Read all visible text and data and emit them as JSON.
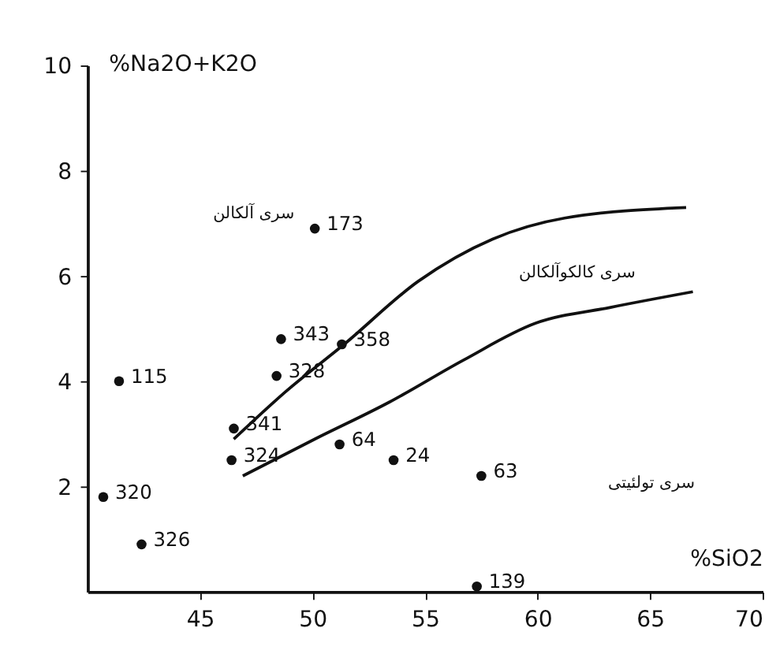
{
  "chart_data": {
    "type": "scatter",
    "xlabel": "%SiO2",
    "ylabel": "%Na2O+K2O",
    "xlim": [
      40,
      70
    ],
    "ylim": [
      0,
      10
    ],
    "xticks": [
      45,
      50,
      55,
      60,
      65,
      70
    ],
    "yticks": [
      2,
      4,
      6,
      8,
      10
    ],
    "grid": false,
    "series": [
      {
        "color": "#111111",
        "marker": "circle",
        "x": [
          50.1,
          48.6,
          51.3,
          48.4,
          41.4,
          46.5,
          46.4,
          51.2,
          53.6,
          57.5,
          40.7,
          42.4,
          57.3
        ],
        "values": [
          6.9,
          4.8,
          4.7,
          4.1,
          4.0,
          3.1,
          2.5,
          2.8,
          2.5,
          2.2,
          1.8,
          0.9,
          0.1
        ]
      },
      {
        "type": "line",
        "color": "#111111",
        "line_style": "solid",
        "x": [
          46.5,
          48.8,
          51.4,
          54.7,
          58.0,
          61.2,
          66.6
        ],
        "values": [
          2.9,
          3.8,
          4.7,
          5.9,
          6.7,
          7.1,
          7.3
        ]
      },
      {
        "type": "line",
        "color": "#111111",
        "line_style": "solid",
        "x": [
          46.9,
          50.1,
          53.4,
          56.7,
          59.9,
          63.2,
          66.9
        ],
        "values": [
          2.2,
          2.9,
          3.6,
          4.4,
          5.1,
          5.4,
          5.7
        ]
      }
    ],
    "annotations": [
      {
        "text": "173",
        "x": 50.1,
        "y": 6.9
      },
      {
        "text": "343",
        "x": 48.6,
        "y": 4.8
      },
      {
        "text": "358",
        "x": 51.3,
        "y": 4.7
      },
      {
        "text": "328",
        "x": 48.4,
        "y": 4.1
      },
      {
        "text": "115",
        "x": 41.4,
        "y": 4.0
      },
      {
        "text": "341",
        "x": 46.5,
        "y": 3.1
      },
      {
        "text": "324",
        "x": 46.4,
        "y": 2.5
      },
      {
        "text": "64",
        "x": 51.2,
        "y": 2.8
      },
      {
        "text": "24",
        "x": 53.6,
        "y": 2.5
      },
      {
        "text": "63",
        "x": 57.5,
        "y": 2.2
      },
      {
        "text": "320",
        "x": 40.7,
        "y": 1.8
      },
      {
        "text": "326",
        "x": 42.4,
        "y": 0.9
      },
      {
        "text": "139",
        "x": 57.3,
        "y": 0.1
      },
      "سری آلکالن",
      "سری کالکوآلکالن",
      "سری تولئیتی"
    ]
  }
}
